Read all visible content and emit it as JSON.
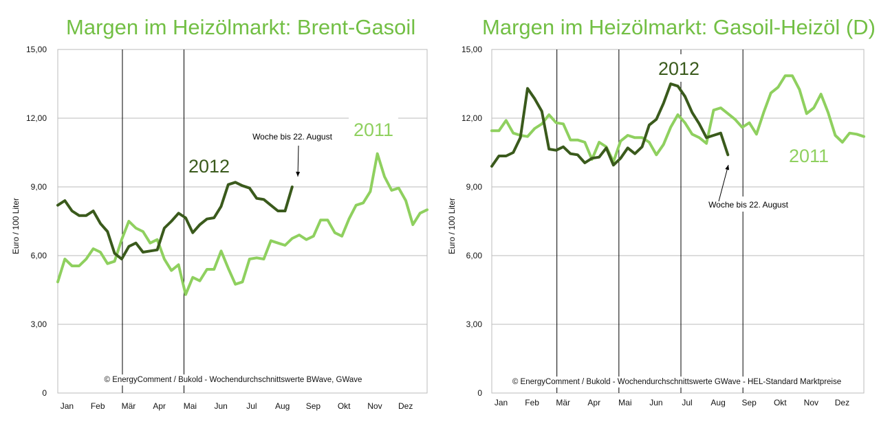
{
  "colors": {
    "title": "#72bf44",
    "series_2012": "#3a5a1c",
    "series_2011": "#8fd05f",
    "grid": "#bbbbbb",
    "vline": "#000000"
  },
  "chart_data": [
    {
      "type": "line",
      "title": "Margen im Heizölmarkt: Brent-Gasoil",
      "ylabel": "Euro / 100 Liter",
      "ylim": [
        0,
        15
      ],
      "yticks": [
        "0",
        "3,00",
        "6,00",
        "9,00",
        "12,00",
        "15,00"
      ],
      "months": [
        "Jan",
        "Feb",
        "Mär",
        "Apr",
        "Mai",
        "Jun",
        "Jul",
        "Aug",
        "Sep",
        "Okt",
        "Nov",
        "Dez"
      ],
      "x_unit": "week",
      "series": [
        {
          "name": "2012",
          "x": [
            1,
            2,
            3,
            4,
            5,
            6,
            7,
            8,
            9,
            10,
            11,
            12,
            13,
            14,
            15,
            16,
            17,
            18,
            19,
            20,
            21,
            22,
            23,
            24,
            25,
            26,
            27,
            28,
            29,
            30,
            31,
            32,
            33,
            34
          ],
          "values": [
            8.2,
            8.4,
            7.95,
            7.75,
            7.75,
            7.95,
            7.4,
            7.05,
            6.1,
            5.85,
            6.4,
            6.55,
            6.15,
            6.2,
            6.25,
            7.2,
            7.5,
            7.85,
            7.65,
            7.0,
            7.35,
            7.6,
            7.65,
            8.15,
            9.1,
            9.2,
            9.05,
            8.95,
            8.5,
            8.45,
            8.2,
            7.95,
            7.95,
            9.0
          ]
        },
        {
          "name": "2011",
          "x": [
            1,
            2,
            3,
            4,
            5,
            6,
            7,
            8,
            9,
            10,
            11,
            12,
            13,
            14,
            15,
            16,
            17,
            18,
            19,
            20,
            21,
            22,
            23,
            24,
            25,
            26,
            27,
            28,
            29,
            30,
            31,
            32,
            33,
            34,
            35,
            36,
            37,
            38,
            39,
            40,
            41,
            42,
            43,
            44,
            45,
            46,
            47,
            48,
            49,
            50,
            51,
            52,
            53
          ],
          "values": [
            4.85,
            5.85,
            5.55,
            5.55,
            5.85,
            6.3,
            6.15,
            5.65,
            5.75,
            6.7,
            7.5,
            7.2,
            7.05,
            6.55,
            6.7,
            5.85,
            5.35,
            5.6,
            4.3,
            5.05,
            4.9,
            5.4,
            5.4,
            6.2,
            5.45,
            4.75,
            4.85,
            5.85,
            5.9,
            5.85,
            6.65,
            6.55,
            6.45,
            6.75,
            6.9,
            6.7,
            6.85,
            7.55,
            7.55,
            7.0,
            6.85,
            7.6,
            8.2,
            8.3,
            8.8,
            10.45,
            9.45,
            8.85,
            8.95,
            8.4,
            7.35,
            7.85,
            8.0
          ]
        }
      ],
      "annotations": [
        {
          "text": "Woche bis 22. August",
          "week": 34,
          "value": 9.0
        },
        {
          "text": "2012"
        },
        {
          "text": "2011"
        }
      ],
      "source": "© EnergyComment / Bukold - Wochendurchschnittswerte BWave, GWave"
    },
    {
      "type": "line",
      "title": "Margen im Heizölmarkt: Gasoil-Heizöl (D)",
      "ylabel": "Euro / 100 Liter",
      "ylim": [
        0,
        15
      ],
      "yticks": [
        "0",
        "3,00",
        "6,00",
        "9,00",
        "12,00",
        "15,00"
      ],
      "months": [
        "Jan",
        "Feb",
        "Mär",
        "Apr",
        "Mai",
        "Jun",
        "Jul",
        "Aug",
        "Sep",
        "Okt",
        "Nov",
        "Dez"
      ],
      "x_unit": "week",
      "series": [
        {
          "name": "2012",
          "x": [
            1,
            2,
            3,
            4,
            5,
            6,
            7,
            8,
            9,
            10,
            11,
            12,
            13,
            14,
            15,
            16,
            17,
            18,
            19,
            20,
            21,
            22,
            23,
            24,
            25,
            26,
            27,
            28,
            29,
            30,
            31,
            32,
            33,
            34
          ],
          "values": [
            9.9,
            10.35,
            10.35,
            10.5,
            11.15,
            13.3,
            12.85,
            12.3,
            10.65,
            10.6,
            10.75,
            10.45,
            10.4,
            10.05,
            10.25,
            10.3,
            10.7,
            9.95,
            10.25,
            10.7,
            10.45,
            10.75,
            11.7,
            11.95,
            12.65,
            13.5,
            13.4,
            12.95,
            12.25,
            11.75,
            11.15,
            11.25,
            11.35,
            10.4
          ]
        },
        {
          "name": "2011",
          "x": [
            1,
            2,
            3,
            4,
            5,
            6,
            7,
            8,
            9,
            10,
            11,
            12,
            13,
            14,
            15,
            16,
            17,
            18,
            19,
            20,
            21,
            22,
            23,
            24,
            25,
            26,
            27,
            28,
            29,
            30,
            31,
            32,
            33,
            34,
            35,
            36,
            37,
            38,
            39,
            40,
            41,
            42,
            43,
            44,
            45,
            46,
            47,
            48,
            49,
            50,
            51,
            52,
            53
          ],
          "values": [
            11.45,
            11.45,
            11.9,
            11.35,
            11.25,
            11.2,
            11.55,
            11.75,
            12.15,
            11.8,
            11.75,
            11.05,
            11.05,
            10.95,
            10.2,
            10.95,
            10.75,
            10.1,
            11.0,
            11.25,
            11.15,
            11.15,
            10.95,
            10.4,
            10.85,
            11.6,
            12.15,
            11.8,
            11.3,
            11.15,
            10.9,
            12.35,
            12.45,
            12.2,
            11.95,
            11.6,
            11.8,
            11.3,
            12.25,
            13.1,
            13.35,
            13.85,
            13.85,
            13.25,
            12.2,
            12.45,
            13.05,
            12.25,
            11.25,
            10.95,
            11.35,
            11.3,
            11.2
          ]
        }
      ],
      "annotations": [
        {
          "text": "Woche bis 22. August",
          "week": 34,
          "value": 10.4
        },
        {
          "text": "2012"
        },
        {
          "text": "2011"
        }
      ],
      "source": "© EnergyComment / Bukold - Wochendurchschnittswerte GWave - HEL-Standard Marktpreise"
    }
  ]
}
